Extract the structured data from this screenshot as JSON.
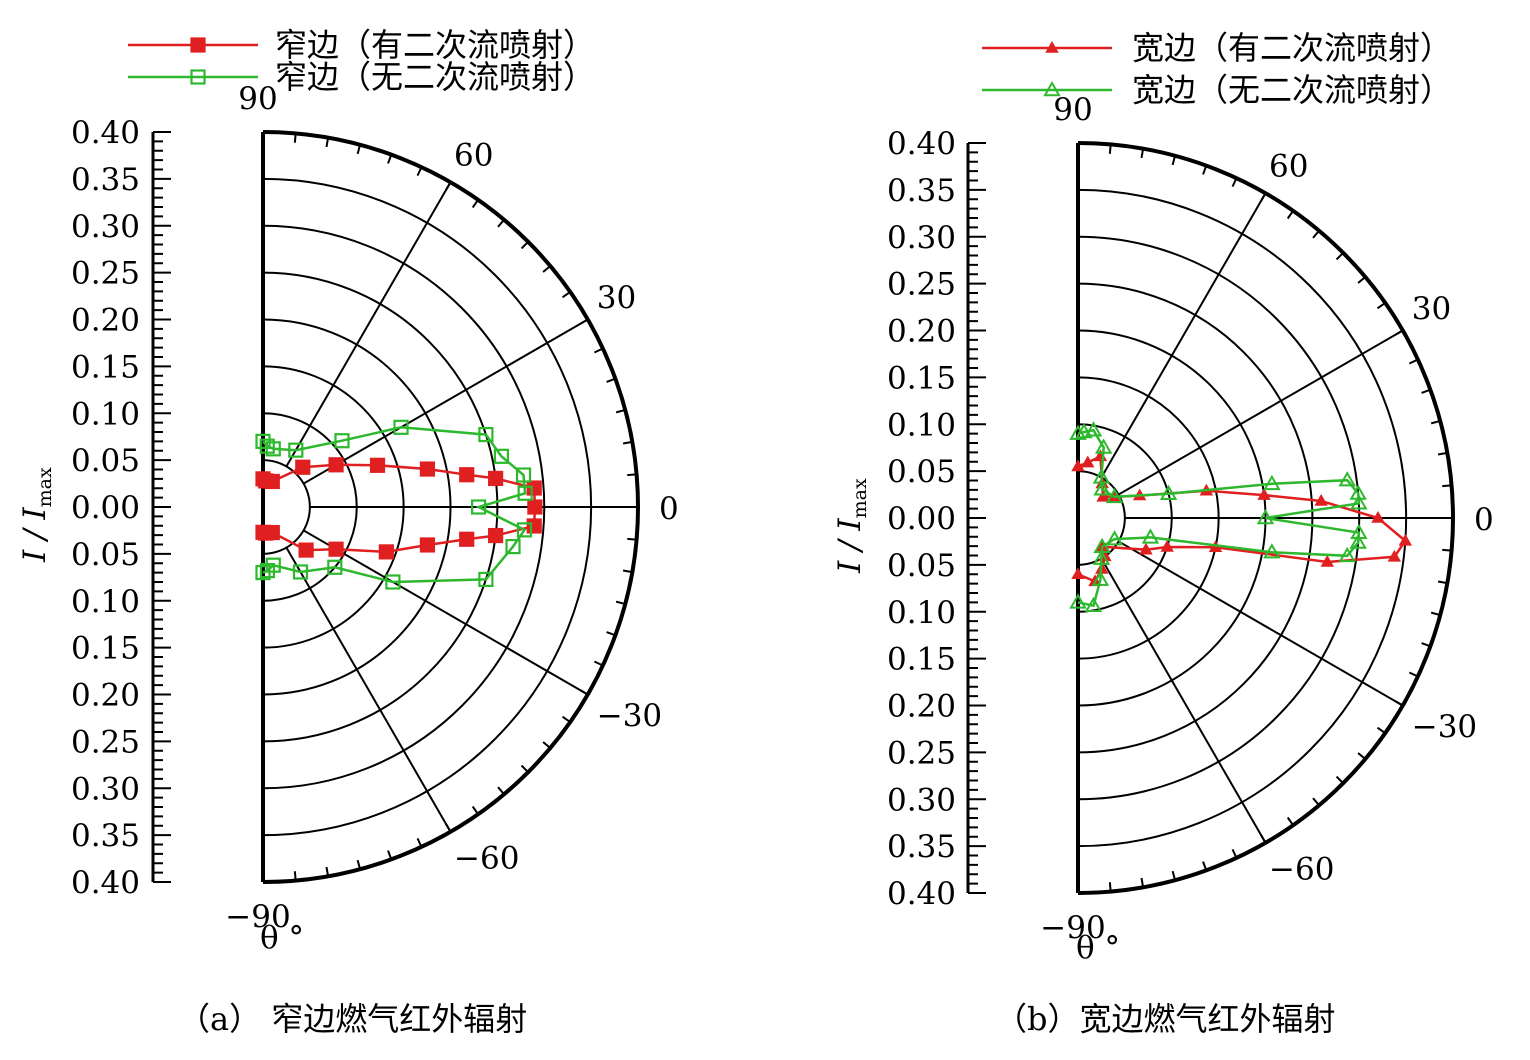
{
  "chart_data": [
    {
      "type": "polar",
      "subfigure_label": "（a） 窄边燃气红外辐射",
      "ylabel": "I / I",
      "ylabel_sub": "max",
      "xlabel": "θ °",
      "r_ticks": [
        "0.40",
        "0.35",
        "0.30",
        "0.25",
        "0.20",
        "0.15",
        "0.10",
        "0.05",
        "0.00",
        "0.05",
        "0.10",
        "0.15",
        "0.20",
        "0.25",
        "0.30",
        "0.35",
        "0.40"
      ],
      "rlim": [
        0,
        0.4
      ],
      "theta_range": [
        -90,
        90
      ],
      "theta_labels": [
        {
          "deg": 90,
          "text": "90"
        },
        {
          "deg": 60,
          "text": "60"
        },
        {
          "deg": 30,
          "text": "30"
        },
        {
          "deg": 0,
          "text": "0"
        },
        {
          "deg": -30,
          "text": "−30"
        },
        {
          "deg": -60,
          "text": "−60"
        },
        {
          "deg": -90,
          "text": "−90"
        }
      ],
      "legend": [
        {
          "text": "窄边（有二次流喷射）",
          "series": 0
        },
        {
          "text": "窄边（无二次流喷射）",
          "series": 1
        }
      ],
      "series": [
        {
          "color": "#e02020",
          "marker": "filled-square",
          "points": [
            [
              90,
              0.03
            ],
            [
              84,
              0.028
            ],
            [
              70,
              0.029
            ],
            [
              45,
              0.06
            ],
            [
              30,
              0.09
            ],
            [
              20,
              0.13
            ],
            [
              13,
              0.18
            ],
            [
              9,
              0.22
            ],
            [
              7,
              0.25
            ],
            [
              4,
              0.29
            ],
            [
              0,
              0.29
            ],
            [
              -4,
              0.29
            ],
            [
              -7,
              0.25
            ],
            [
              -9,
              0.22
            ],
            [
              -13,
              0.18
            ],
            [
              -20,
              0.14
            ],
            [
              -30,
              0.09
            ],
            [
              -45,
              0.065
            ],
            [
              -70,
              0.029
            ],
            [
              -84,
              0.028
            ],
            [
              -90,
              0.027
            ]
          ]
        },
        {
          "color": "#2db82d",
          "marker": "open-square",
          "points": [
            [
              90,
              0.07
            ],
            [
              86,
              0.065
            ],
            [
              80,
              0.063
            ],
            [
              60,
              0.07
            ],
            [
              40,
              0.11
            ],
            [
              30,
              0.17
            ],
            [
              18,
              0.25
            ],
            [
              12,
              0.26
            ],
            [
              7,
              0.28
            ],
            [
              3,
              0.28
            ],
            [
              0,
              0.23
            ],
            [
              -5,
              0.28
            ],
            [
              -9,
              0.27
            ],
            [
              -18,
              0.25
            ],
            [
              -30,
              0.16
            ],
            [
              -40,
              0.1
            ],
            [
              -60,
              0.08
            ],
            [
              -80,
              0.063
            ],
            [
              -86,
              0.068
            ],
            [
              -90,
              0.07
            ]
          ]
        }
      ]
    },
    {
      "type": "polar",
      "subfigure_label": "（b）宽边燃气红外辐射",
      "ylabel": "I / I",
      "ylabel_sub": "max",
      "xlabel": "θ °",
      "r_ticks": [
        "0.40",
        "0.35",
        "0.30",
        "0.25",
        "0.20",
        "0.15",
        "0.10",
        "0.05",
        "0.00",
        "0.05",
        "0.10",
        "0.15",
        "0.20",
        "0.25",
        "0.30",
        "0.35",
        "0.40"
      ],
      "rlim": [
        0,
        0.4
      ],
      "theta_range": [
        -90,
        90
      ],
      "theta_labels": [
        {
          "deg": 90,
          "text": "90"
        },
        {
          "deg": 60,
          "text": "60"
        },
        {
          "deg": 30,
          "text": "30"
        },
        {
          "deg": 0,
          "text": "0"
        },
        {
          "deg": -30,
          "text": "−30"
        },
        {
          "deg": -60,
          "text": "−60"
        },
        {
          "deg": -90,
          "text": "−90"
        }
      ],
      "legend": [
        {
          "text": "宽边（有二次流喷射）",
          "series": 0
        },
        {
          "text": "宽边（无二次流喷射）",
          "series": 1
        }
      ],
      "series": [
        {
          "color": "#e02020",
          "marker": "filled-triangle",
          "points": [
            [
              90,
              0.055
            ],
            [
              80,
              0.06
            ],
            [
              70,
              0.07
            ],
            [
              55,
              0.045
            ],
            [
              40,
              0.035
            ],
            [
              30,
              0.045
            ],
            [
              20,
              0.07
            ],
            [
              12,
              0.14
            ],
            [
              7,
              0.2
            ],
            [
              4,
              0.26
            ],
            [
              0,
              0.32
            ],
            [
              -4,
              0.35
            ],
            [
              -7,
              0.34
            ],
            [
              -10,
              0.27
            ],
            [
              -12,
              0.15
            ],
            [
              -18,
              0.1
            ],
            [
              -25,
              0.08
            ],
            [
              -50,
              0.04
            ],
            [
              -55,
              0.05
            ],
            [
              -65,
              0.06
            ],
            [
              -75,
              0.07
            ],
            [
              -90,
              0.06
            ]
          ]
        },
        {
          "color": "#2db82d",
          "marker": "open-triangle",
          "points": [
            [
              90,
              0.09
            ],
            [
              86,
              0.092
            ],
            [
              80,
              0.095
            ],
            [
              70,
              0.08
            ],
            [
              60,
              0.05
            ],
            [
              50,
              0.04
            ],
            [
              30,
              0.045
            ],
            [
              15,
              0.1
            ],
            [
              10,
              0.21
            ],
            [
              8,
              0.29
            ],
            [
              5,
              0.3
            ],
            [
              3,
              0.3
            ],
            [
              0,
              0.2
            ],
            [
              -3,
              0.3
            ],
            [
              -5,
              0.3
            ],
            [
              -8,
              0.29
            ],
            [
              -10,
              0.21
            ],
            [
              -15,
              0.08
            ],
            [
              -30,
              0.045
            ],
            [
              -50,
              0.04
            ],
            [
              -60,
              0.05
            ],
            [
              -70,
              0.07
            ],
            [
              -80,
              0.095
            ],
            [
              -90,
              0.09
            ]
          ]
        }
      ]
    }
  ]
}
